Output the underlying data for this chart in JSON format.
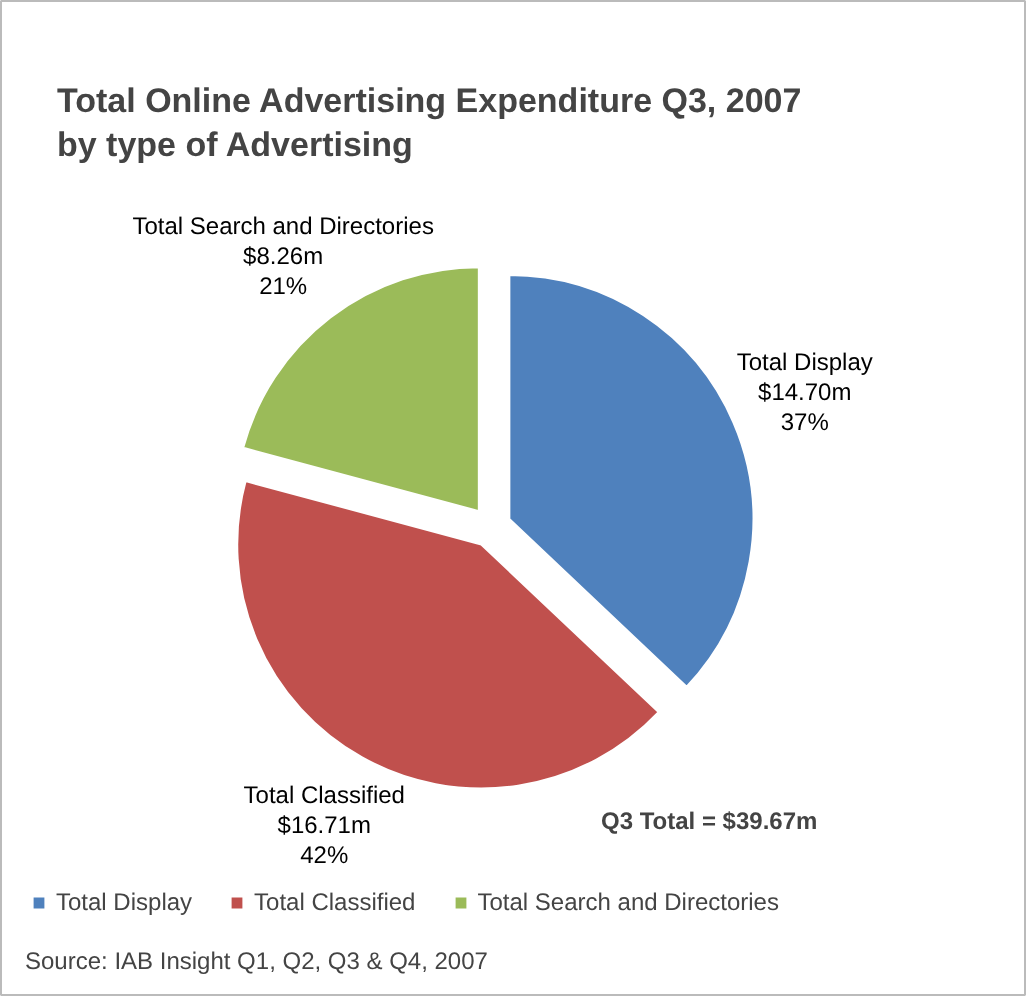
{
  "chart_data": {
    "type": "pie",
    "title": "Total Online Advertising Expenditure Q3, 2007\nby type of Advertising",
    "categories": [
      "Total Display",
      "Total Classified",
      "Total Search and Directories"
    ],
    "values": [
      14.7,
      16.71,
      8.26
    ],
    "colors": [
      "#4f81bd",
      "#c0504d",
      "#9bbb59"
    ],
    "value_labels": [
      "$14.70m",
      "$16.71m",
      "$8.26m"
    ],
    "legend": "bottom",
    "annotations": [
      "Q3 Total = $39.67m",
      "Source: IAB Insight Q1, Q2, Q3 & Q4, 2007",
      {
        "text": "37%",
        "x": "Total Display"
      },
      {
        "text": "42%",
        "x": "Total Classified"
      },
      {
        "text": "21%",
        "x": "Total Search and Directories"
      }
    ]
  }
}
